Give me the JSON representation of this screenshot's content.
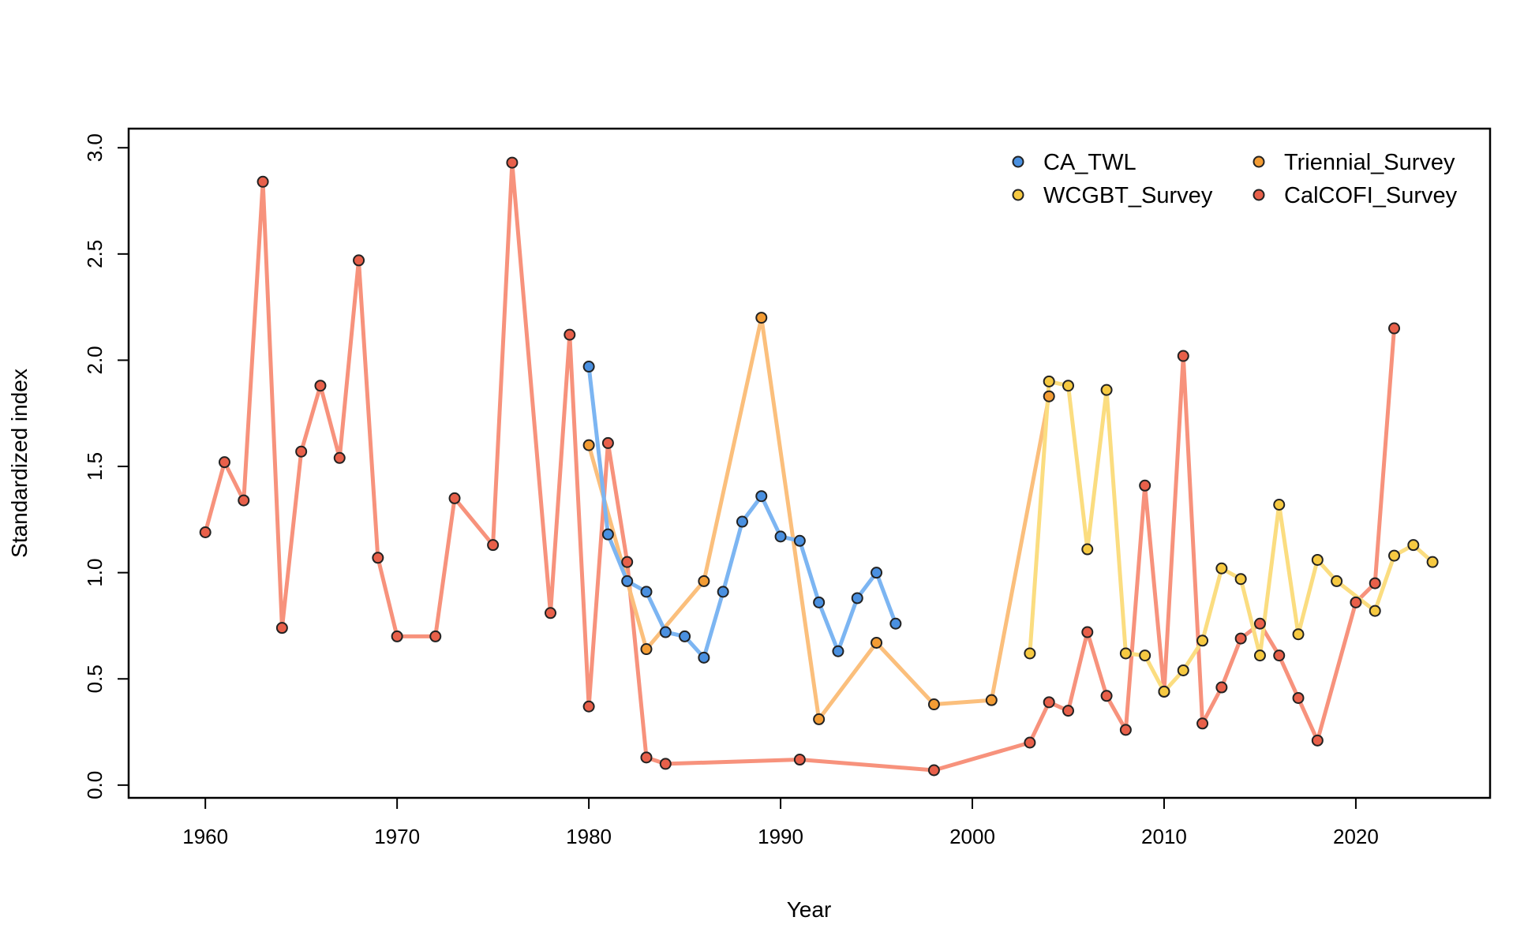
{
  "chart_data": {
    "type": "line",
    "title": "",
    "xlabel": "Year",
    "ylabel": "Standardized index",
    "xlim": [
      1956,
      2027
    ],
    "ylim": [
      -0.06,
      3.09
    ],
    "xticks": [
      1960,
      1970,
      1980,
      1990,
      2000,
      2010,
      2020
    ],
    "xtick_labels": [
      "1960",
      "1970",
      "1980",
      "1990",
      "2000",
      "2010",
      "2020"
    ],
    "yticks": [
      0,
      0.5,
      1,
      1.5,
      2,
      2.5,
      3
    ],
    "ytick_labels": [
      "0.0",
      "0.5",
      "1.0",
      "1.5",
      "2.0",
      "2.5",
      "3.0"
    ],
    "grid": false,
    "legend_position": "top-right",
    "series": [
      {
        "name": "CalCOFI_Survey",
        "line_color": "#F7927C",
        "point_color": "#E8604A",
        "points": [
          [
            1960,
            1.19
          ],
          [
            1961,
            1.52
          ],
          [
            1962,
            1.34
          ],
          [
            1963,
            2.84
          ],
          [
            1964,
            0.74
          ],
          [
            1965,
            1.57
          ],
          [
            1966,
            1.88
          ],
          [
            1967,
            1.54
          ],
          [
            1968,
            2.47
          ],
          [
            1969,
            1.07
          ],
          [
            1970,
            0.7
          ],
          [
            1972,
            0.7
          ],
          [
            1973,
            1.35
          ],
          [
            1975,
            1.13
          ],
          [
            1976,
            2.93
          ],
          [
            1978,
            0.81
          ],
          [
            1979,
            2.12
          ],
          [
            1980,
            0.37
          ],
          [
            1981,
            1.61
          ],
          [
            1982,
            1.05
          ],
          [
            1983,
            0.13
          ],
          [
            1984,
            0.1
          ],
          [
            1991,
            0.12
          ],
          [
            1998,
            0.07
          ],
          [
            2003,
            0.2
          ],
          [
            2004,
            0.39
          ],
          [
            2005,
            0.35
          ],
          [
            2006,
            0.72
          ],
          [
            2007,
            0.42
          ],
          [
            2008,
            0.26
          ],
          [
            2009,
            1.41
          ],
          [
            2010,
            0.44
          ],
          [
            2011,
            2.02
          ],
          [
            2012,
            0.29
          ],
          [
            2013,
            0.46
          ],
          [
            2014,
            0.69
          ],
          [
            2015,
            0.76
          ],
          [
            2016,
            0.61
          ],
          [
            2017,
            0.41
          ],
          [
            2018,
            0.21
          ],
          [
            2020,
            0.86
          ],
          [
            2021,
            0.95
          ],
          [
            2022,
            2.15
          ]
        ]
      },
      {
        "name": "Triennial_Survey",
        "line_color": "#FBBF7C",
        "point_color": "#F39C34",
        "points": [
          [
            1980,
            1.6
          ],
          [
            1983,
            0.64
          ],
          [
            1986,
            0.96
          ],
          [
            1989,
            2.2
          ],
          [
            1992,
            0.31
          ],
          [
            1995,
            0.67
          ],
          [
            1998,
            0.38
          ],
          [
            2001,
            0.4
          ],
          [
            2004,
            1.83
          ]
        ]
      },
      {
        "name": "WCGBT_Survey",
        "line_color": "#FBDD80",
        "point_color": "#F6C941",
        "points": [
          [
            2003,
            0.62
          ],
          [
            2004,
            1.9
          ],
          [
            2005,
            1.88
          ],
          [
            2006,
            1.11
          ],
          [
            2007,
            1.86
          ],
          [
            2008,
            0.62
          ],
          [
            2009,
            0.61
          ],
          [
            2010,
            0.44
          ],
          [
            2011,
            0.54
          ],
          [
            2012,
            0.68
          ],
          [
            2013,
            1.02
          ],
          [
            2014,
            0.97
          ],
          [
            2015,
            0.61
          ],
          [
            2016,
            1.32
          ],
          [
            2017,
            0.71
          ],
          [
            2018,
            1.06
          ],
          [
            2019,
            0.96
          ],
          [
            2021,
            0.82
          ],
          [
            2022,
            1.08
          ],
          [
            2023,
            1.13
          ],
          [
            2024,
            1.05
          ]
        ]
      },
      {
        "name": "CA_TWL",
        "line_color": "#7CB5F2",
        "point_color": "#4A90E0",
        "points": [
          [
            1980,
            1.97
          ],
          [
            1981,
            1.18
          ],
          [
            1982,
            0.96
          ],
          [
            1983,
            0.91
          ],
          [
            1984,
            0.72
          ],
          [
            1985,
            0.7
          ],
          [
            1986,
            0.6
          ],
          [
            1987,
            0.91
          ],
          [
            1988,
            1.24
          ],
          [
            1989,
            1.36
          ],
          [
            1990,
            1.17
          ],
          [
            1991,
            1.15
          ],
          [
            1992,
            0.86
          ],
          [
            1993,
            0.63
          ],
          [
            1994,
            0.88
          ],
          [
            1995,
            1.0
          ],
          [
            1996,
            0.76
          ]
        ]
      }
    ],
    "legend": {
      "entries": [
        {
          "label": "CA_TWL",
          "color": "#4A90E0"
        },
        {
          "label": "WCGBT_Survey",
          "color": "#F6C941"
        },
        {
          "label": "Triennial_Survey",
          "color": "#F39C34"
        },
        {
          "label": "CalCOFI_Survey",
          "color": "#E8604A"
        }
      ]
    }
  }
}
